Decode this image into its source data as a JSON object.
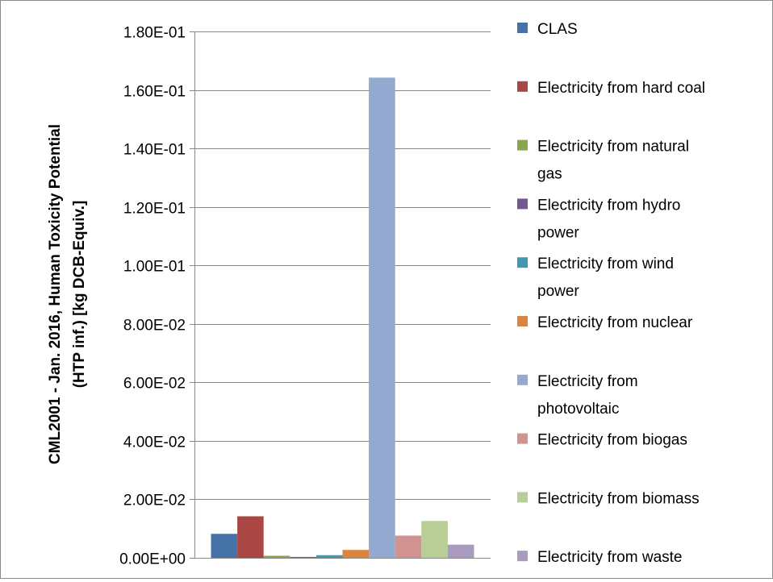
{
  "chart_data": {
    "type": "bar",
    "title": "",
    "xlabel": "",
    "ylabel_line1": "CML2001 - Jan. 2016, Human Toxicity Potential",
    "ylabel_line2": "(HTP inf.) [kg DCB-Equiv.]",
    "ylim": [
      0,
      0.18
    ],
    "ytick_values": [
      0,
      0.02,
      0.04,
      0.06,
      0.08,
      0.1,
      0.12,
      0.14,
      0.16,
      0.18
    ],
    "ytick_labels": [
      "0.00E+00",
      "2.00E-02",
      "4.00E-02",
      "6.00E-02",
      "8.00E-02",
      "1.00E-01",
      "1.20E-01",
      "1.40E-01",
      "1.60E-01",
      "1.80E-01"
    ],
    "grid": true,
    "legend_position": "right",
    "series": [
      {
        "name": "CLAS",
        "legend_lines": [
          "CLAS"
        ],
        "value": 0.0082,
        "color": "#4572A7"
      },
      {
        "name": "Electricity from hard coal",
        "legend_lines": [
          "Electricity from hard coal"
        ],
        "value": 0.0142,
        "color": "#AA4643"
      },
      {
        "name": "Electricity from natural gas",
        "legend_lines": [
          "Electricity from natural",
          "gas"
        ],
        "value": 0.0007,
        "color": "#89A54E"
      },
      {
        "name": "Electricity from hydro power",
        "legend_lines": [
          "Electricity from hydro",
          "power"
        ],
        "value": 0.0003,
        "color": "#71588F"
      },
      {
        "name": "Electricity from wind power",
        "legend_lines": [
          "Electricity from wind",
          "power"
        ],
        "value": 0.0009,
        "color": "#4198AF"
      },
      {
        "name": "Electricity from nuclear",
        "legend_lines": [
          "Electricity from nuclear"
        ],
        "value": 0.0027,
        "color": "#DB843D"
      },
      {
        "name": "Electricity from photovoltaic",
        "legend_lines": [
          "Electricity from",
          "photovoltaic"
        ],
        "value": 0.1642,
        "color": "#93A9CF"
      },
      {
        "name": "Electricity from biogas",
        "legend_lines": [
          "Electricity from biogas"
        ],
        "value": 0.0076,
        "color": "#D19392"
      },
      {
        "name": "Electricity from biomass",
        "legend_lines": [
          "Electricity from biomass"
        ],
        "value": 0.0126,
        "color": "#B9CD96"
      },
      {
        "name": "Electricity from waste",
        "legend_lines": [
          "Electricity from waste"
        ],
        "value": 0.0045,
        "color": "#A99BBD"
      }
    ]
  }
}
